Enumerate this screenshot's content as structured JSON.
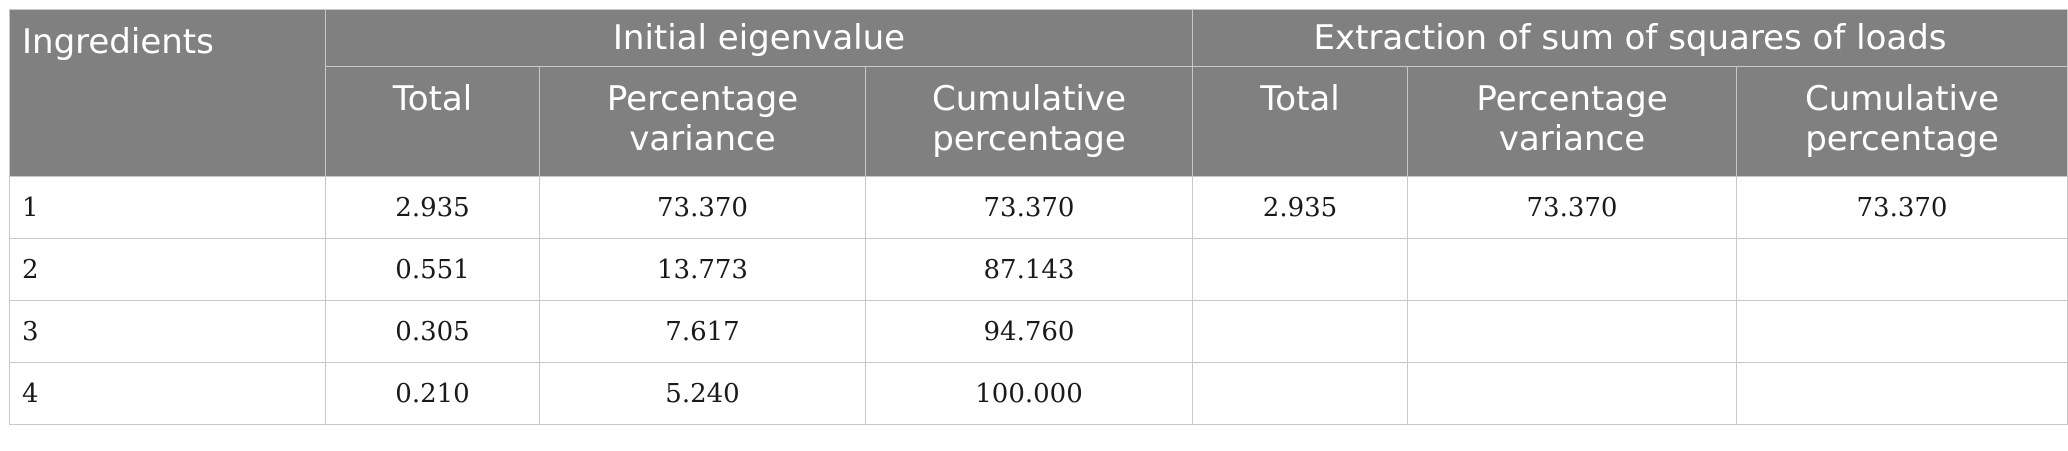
{
  "header": {
    "ingredients": "Ingredients",
    "group_initial": "Initial eigenvalue",
    "group_extraction": "Extraction of sum of squares of loads",
    "sub": {
      "total": "Total",
      "pct_var_1": "Percentage",
      "pct_var_2": "variance",
      "cum_pct_1": "Cumulative",
      "cum_pct_2": "percentage"
    }
  },
  "rows": [
    {
      "label": "1",
      "init_total": "2.935",
      "init_pct": "73.370",
      "init_cum": "73.370",
      "ext_total": "2.935",
      "ext_pct": "73.370",
      "ext_cum": "73.370"
    },
    {
      "label": "2",
      "init_total": "0.551",
      "init_pct": "13.773",
      "init_cum": "87.143",
      "ext_total": "",
      "ext_pct": "",
      "ext_cum": ""
    },
    {
      "label": "3",
      "init_total": "0.305",
      "init_pct": "7.617",
      "init_cum": "94.760",
      "ext_total": "",
      "ext_pct": "",
      "ext_cum": ""
    },
    {
      "label": "4",
      "init_total": "0.210",
      "init_pct": "5.240",
      "init_cum": "100.000",
      "ext_total": "",
      "ext_pct": "",
      "ext_cum": ""
    }
  ],
  "colors": {
    "header_bg": "#808080",
    "header_text": "#ffffff",
    "grid": "#c8c8c8"
  }
}
